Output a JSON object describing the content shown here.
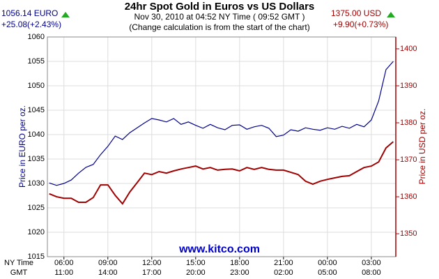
{
  "chart_data": {
    "type": "line",
    "title": "24hr Spot Gold in Euros vs US Dollars",
    "subtitle": "Nov 30, 2010 at 04:52 NY Time ( 09:52 GMT )",
    "note": "(Change calculation is from the start of the chart)",
    "price_left": "1056.14 EURO",
    "change_left": "+25.08(+2.43%)",
    "price_right": "1375.00 USD",
    "change_right": "+9.90(+0.73%)",
    "watermark": "www.kitco.com",
    "ylabel": "Price in EURO per oz.",
    "y2label": "Price in USD per oz.",
    "x_row_labels": [
      "NY Time",
      "GMT"
    ],
    "x": [
      5,
      5.5,
      6,
      6.5,
      7,
      7.5,
      8,
      8.5,
      9,
      9.5,
      10,
      10.5,
      11,
      11.5,
      12,
      12.5,
      13,
      13.5,
      14,
      14.5,
      15,
      15.5,
      16,
      16.5,
      17,
      17.5,
      18,
      18.5,
      19,
      19.5,
      20,
      20.5,
      21,
      21.5,
      22,
      22.5,
      23,
      23.5,
      24,
      24.5,
      25,
      25.5,
      26,
      26.5,
      27,
      27.5,
      28,
      28.5
    ],
    "series": [
      {
        "color": "#00008b",
        "axis": "y",
        "values": [
          1030.1,
          1029.6,
          1030.0,
          1030.7,
          1032.1,
          1033.3,
          1033.9,
          1035.9,
          1037.6,
          1039.7,
          1039.0,
          1040.4,
          1041.4,
          1042.4,
          1043.3,
          1043.0,
          1042.6,
          1043.3,
          1042.1,
          1042.6,
          1041.9,
          1041.3,
          1042.1,
          1041.4,
          1041.0,
          1041.9,
          1042.0,
          1041.1,
          1041.6,
          1041.9,
          1041.3,
          1039.6,
          1039.9,
          1041.0,
          1040.7,
          1041.4,
          1041.1,
          1040.9,
          1041.4,
          1041.1,
          1041.7,
          1041.3,
          1042.1,
          1041.6,
          1043.0,
          1046.9,
          1053.3,
          1055.0
        ]
      },
      {
        "color": "#a00000",
        "axis": "y2",
        "values": [
          1360.8,
          1360.0,
          1359.6,
          1359.6,
          1358.5,
          1358.5,
          1359.8,
          1363.2,
          1363.2,
          1360.4,
          1358.1,
          1361.3,
          1363.8,
          1366.4,
          1366.0,
          1366.8,
          1366.4,
          1367.0,
          1367.5,
          1367.9,
          1368.3,
          1367.5,
          1367.9,
          1367.2,
          1367.4,
          1367.5,
          1367.0,
          1367.9,
          1367.4,
          1367.9,
          1367.4,
          1367.2,
          1367.2,
          1366.6,
          1366.0,
          1364.2,
          1363.4,
          1364.2,
          1364.7,
          1365.1,
          1365.5,
          1365.7,
          1366.8,
          1367.9,
          1368.3,
          1369.4,
          1373.2,
          1374.9
        ]
      }
    ],
    "xlim": [
      4.87,
      28.67
    ],
    "xticks": [
      {
        "value": 6,
        "label": "06:00"
      },
      {
        "value": 9,
        "label": "09:00"
      },
      {
        "value": 12,
        "label": "12:00"
      },
      {
        "value": 15,
        "label": "15:00"
      },
      {
        "value": 18,
        "label": "18:00"
      },
      {
        "value": 21,
        "label": "21:00"
      },
      {
        "value": 24,
        "label": "00:00"
      },
      {
        "value": 27,
        "label": "03:00"
      }
    ],
    "xticks_gmt": [
      "11:00",
      "14:00",
      "17:00",
      "20:00",
      "23:00",
      "02:00",
      "05:00",
      "08:00"
    ],
    "ylim": [
      1015,
      1060
    ],
    "yticks": [
      1015,
      1020,
      1025,
      1030,
      1035,
      1040,
      1045,
      1050,
      1055,
      1060
    ],
    "y2lim": [
      1343.8,
      1403.2
    ],
    "y2ticks": [
      1350,
      1360,
      1370,
      1380,
      1390,
      1400
    ],
    "grid": true
  }
}
